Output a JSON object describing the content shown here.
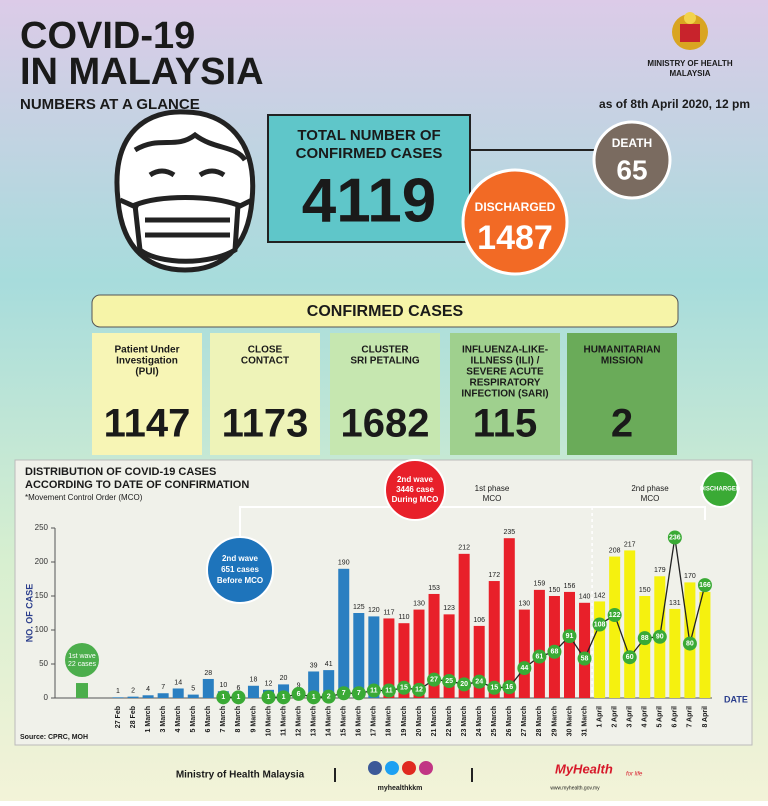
{
  "header": {
    "title_line1": "COVID-19",
    "title_line2": "IN MALAYSIA",
    "ministry": [
      "MINISTRY OF HEALTH",
      "MALAYSIA"
    ],
    "subtitle": "NUMBERS AT A GLANCE",
    "as_of": "as of 8th April 2020, 12 pm"
  },
  "totals": {
    "confirmed_label": [
      "TOTAL NUMBER OF",
      "CONFIRMED CASES"
    ],
    "confirmed": 4119,
    "discharged_label": "DISCHARGED",
    "discharged": 1487,
    "death_label": "DEATH",
    "death": 65
  },
  "confirmed_cases": {
    "title": "CONFIRMED CASES",
    "groups": [
      {
        "label": [
          "Patient Under",
          "Investigation",
          "(PUI)"
        ],
        "value": 1147
      },
      {
        "label": [
          "CLOSE",
          "CONTACT"
        ],
        "value": 1173
      },
      {
        "label": [
          "CLUSTER",
          "SRI PETALING"
        ],
        "value": 1682
      },
      {
        "label": [
          "INFLUENZA-LIKE-",
          "ILLNESS (ILI) /",
          "SEVERE ACUTE",
          "RESPIRATORY",
          "INFECTION (SARI)"
        ],
        "value": 115
      },
      {
        "label": [
          "HUMANITARIAN",
          "MISSION"
        ],
        "value": 2
      }
    ]
  },
  "chart_data": {
    "type": "bar",
    "title": [
      "DISTRIBUTION OF COVID-19 CASES",
      "ACCORDING TO DATE OF CONFIRMATION"
    ],
    "subtitle": "*Movement Control Order (MCO)",
    "y_label": "NO. OF CASE",
    "x_label": "DATE",
    "source": "Source: CPRC, MOH",
    "categories": [
      "27 Feb",
      "28 Feb",
      "1 March",
      "3 March",
      "4 March",
      "5 March",
      "6 March",
      "7 March",
      "8 March",
      "9 March",
      "10 March",
      "11 March",
      "12 March",
      "13 March",
      "14 March",
      "15 March",
      "16 March",
      "17 March",
      "18 March",
      "19 March",
      "20 March",
      "21 March",
      "22 March",
      "23 March",
      "24 March",
      "25 March",
      "26 March",
      "27 March",
      "28 March",
      "29 March",
      "30 March",
      "31 March",
      "1 April",
      "2 April",
      "3 April",
      "4 April",
      "5 April",
      "6 April",
      "7 April",
      "8 April"
    ],
    "values": [
      1,
      2,
      4,
      7,
      14,
      5,
      28,
      10,
      6,
      18,
      12,
      20,
      9,
      39,
      41,
      190,
      125,
      120,
      117,
      110,
      130,
      153,
      123,
      212,
      106,
      172,
      235,
      130,
      159,
      150,
      156,
      140,
      142,
      208,
      217,
      150,
      179,
      131,
      170,
      156
    ],
    "colors": [
      "#2a7fc1",
      "#2a7fc1",
      "#2a7fc1",
      "#2a7fc1",
      "#2a7fc1",
      "#2a7fc1",
      "#2a7fc1",
      "#2a7fc1",
      "#2a7fc1",
      "#2a7fc1",
      "#2a7fc1",
      "#2a7fc1",
      "#2a7fc1",
      "#2a7fc1",
      "#2a7fc1",
      "#2a7fc1",
      "#2a7fc1",
      "#2a7fc1",
      "#e8202a",
      "#e8202a",
      "#e8202a",
      "#e8202a",
      "#e8202a",
      "#e8202a",
      "#e8202a",
      "#e8202a",
      "#e8202a",
      "#e8202a",
      "#e8202a",
      "#e8202a",
      "#e8202a",
      "#e8202a",
      "#f5f10f",
      "#f5f10f",
      "#f5f10f",
      "#f5f10f",
      "#f5f10f",
      "#f5f10f",
      "#f5f10f",
      "#f5f10f"
    ],
    "series": [
      {
        "name": "DISCHARGED",
        "color": "#3aaa35",
        "values": [
          null,
          null,
          null,
          null,
          null,
          null,
          null,
          1,
          1,
          null,
          1,
          1,
          6,
          1,
          2,
          7,
          7,
          11,
          11,
          15,
          12,
          27,
          25,
          20,
          24,
          15,
          16,
          44,
          61,
          68,
          91,
          58,
          108,
          122,
          60,
          88,
          90,
          236,
          80,
          166
        ]
      }
    ],
    "first_wave": {
      "value": 22,
      "color": "#4cae4c",
      "label": [
        "1st wave",
        "22 cases"
      ]
    },
    "annotations": {
      "before_mco": [
        "2nd wave",
        "651 cases",
        "Before MCO"
      ],
      "during_mco": [
        "2nd wave",
        "3446 case",
        "During MCO"
      ],
      "phase1": [
        "1st phase",
        "MCO"
      ],
      "phase2": [
        "2nd phase",
        "MCO"
      ]
    },
    "ylim": [
      0,
      250
    ],
    "yticks": [
      0,
      50,
      100,
      150,
      200,
      250
    ]
  },
  "footer": {
    "ministry": "Ministry of Health Malaysia",
    "handle": "myhealthkkm",
    "logo": "MyHealth",
    "logo_tag": "for life",
    "url": "www.myhealth.gov.my"
  }
}
